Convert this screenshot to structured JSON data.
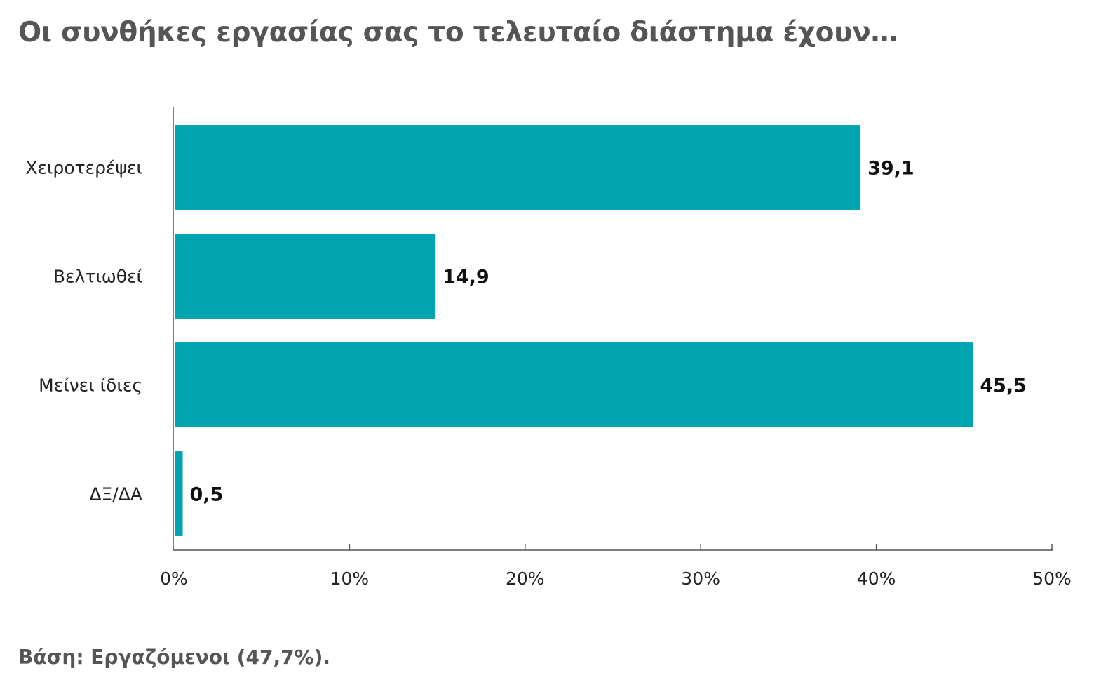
{
  "title": "Οι συνθήκες εργασίας σας το τελευταίο διάστημα έχουν…",
  "footnote": "Βάση: Εργαζόμενοι (47,7%).",
  "colors": {
    "bar": "#00a3b0",
    "axis": "#555555",
    "title": "#555555"
  },
  "chart_data": {
    "type": "bar",
    "orientation": "horizontal",
    "categories": [
      "Χειροτερέψει",
      "Βελτιωθεί",
      "Μείνει ίδιες",
      "ΔΞ/ΔΑ"
    ],
    "values": [
      39.1,
      14.9,
      45.5,
      0.5
    ],
    "value_labels": [
      "39,1",
      "14,9",
      "45,5",
      "0,5"
    ],
    "xlim": [
      0,
      50
    ],
    "x_ticks": [
      0,
      10,
      20,
      30,
      40,
      50
    ],
    "x_tick_labels": [
      "0%",
      "10%",
      "20%",
      "30%",
      "40%",
      "50%"
    ],
    "grid": false,
    "legend": "none",
    "title": "Οι συνθήκες εργασίας σας το τελευταίο διάστημα έχουν…",
    "xlabel": "",
    "ylabel": ""
  }
}
